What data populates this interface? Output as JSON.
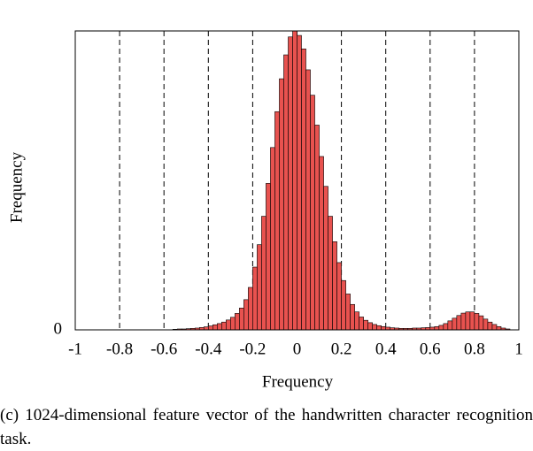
{
  "chart_data": {
    "type": "histogram",
    "x_label": "Frequency",
    "y_label": "Frequency",
    "caption": "(c) 1024-dimensional feature vector of the handwritten character recognition task.",
    "color": "#e8524f",
    "edge_color": "#000000",
    "bins": [
      -0.56,
      -0.54,
      -0.52,
      -0.5,
      -0.48,
      -0.46,
      -0.44,
      -0.42,
      -0.4,
      -0.38,
      -0.36,
      -0.34,
      -0.32,
      -0.3,
      -0.28,
      -0.26,
      -0.24,
      -0.22,
      -0.2,
      -0.18,
      -0.16,
      -0.14,
      -0.12,
      -0.1,
      -0.08,
      -0.06,
      -0.04,
      -0.02,
      0,
      0.02,
      0.04,
      0.06,
      0.08,
      0.1,
      0.12,
      0.14,
      0.16,
      0.18,
      0.2,
      0.22,
      0.24,
      0.26,
      0.28,
      0.3,
      0.32,
      0.34,
      0.36,
      0.38,
      0.4,
      0.42,
      0.44,
      0.46,
      0.48,
      0.5,
      0.52,
      0.54,
      0.56,
      0.58,
      0.6,
      0.62,
      0.64,
      0.66,
      0.68,
      0.7,
      0.72,
      0.74,
      0.76,
      0.78,
      0.8,
      0.82,
      0.84,
      0.86,
      0.88,
      0.9,
      0.92,
      0.94,
      0.96
    ],
    "values": [
      0.2,
      0.3,
      0.3,
      0.4,
      0.5,
      0.6,
      0.8,
      1.0,
      1.3,
      1.7,
      2.1,
      2.6,
      3.3,
      4.2,
      5.5,
      7.3,
      10.1,
      14.2,
      21,
      28.5,
      38,
      49,
      61,
      73,
      84,
      92,
      98,
      100,
      98.5,
      94,
      87,
      78.5,
      68.5,
      58,
      48,
      38,
      29.5,
      22.5,
      16.5,
      12,
      8.5,
      6,
      4.3,
      3.2,
      2.4,
      1.8,
      1.4,
      1.1,
      0.9,
      0.7,
      0.6,
      0.5,
      0.5,
      0.5,
      0.6,
      0.6,
      0.7,
      0.8,
      0.9,
      1.1,
      1.5,
      2.1,
      3.0,
      3.9,
      4.8,
      5.6,
      6.0,
      6.0,
      5.5,
      4.7,
      3.6,
      2.6,
      1.8,
      1.1,
      0.6,
      0.3
    ],
    "xlim": [
      -1,
      1
    ],
    "xticks": [
      -1,
      -0.8,
      -0.6,
      -0.4,
      -0.2,
      0,
      0.2,
      0.4,
      0.6,
      0.8,
      1
    ],
    "ylim": [
      0,
      100
    ],
    "yticks": [
      0
    ],
    "grid": true
  }
}
